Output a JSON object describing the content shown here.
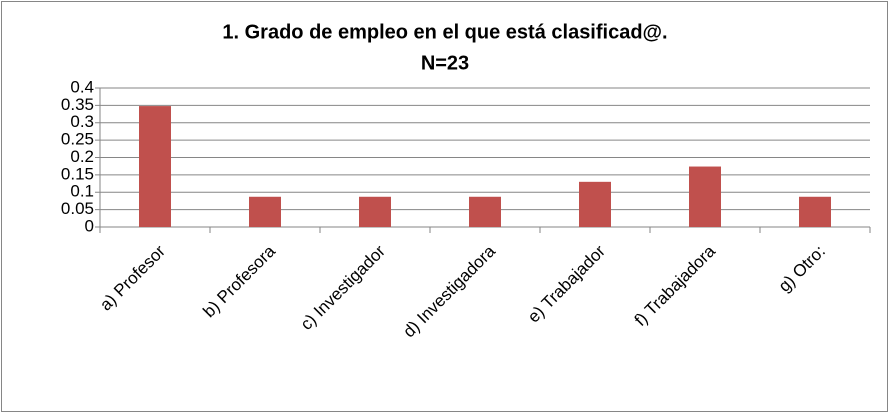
{
  "chart_data": {
    "type": "bar",
    "title": "1. Grado de empleo en el que está clasificad@.",
    "subtitle": "N=23",
    "categories": [
      "a) Profesor",
      "b) Profesora",
      "c) Investigador",
      "d) Investigadora",
      "e) Trabajador",
      "f) Trabajadora",
      "g) Otro:"
    ],
    "values": [
      0.348,
      0.087,
      0.087,
      0.087,
      0.13,
      0.174,
      0.087
    ],
    "color": "#c0504d",
    "ylim": [
      0,
      0.4
    ],
    "yticks": [
      0,
      0.05,
      0.1,
      0.15,
      0.2,
      0.25,
      0.3,
      0.35,
      0.4
    ],
    "grid": true
  }
}
